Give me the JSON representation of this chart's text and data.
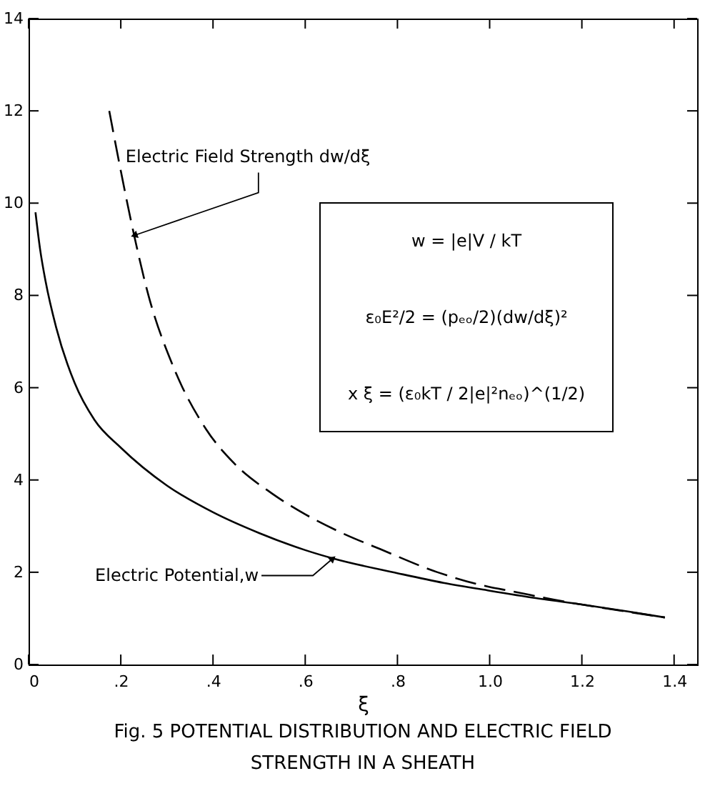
{
  "chart_data": {
    "type": "line",
    "title": "Fig. 5 POTENTIAL DISTRIBUTION AND ELECTRIC FIELD STRENGTH IN A SHEATH",
    "xlabel": "ξ",
    "xlim": [
      0,
      1.45
    ],
    "ylim": [
      0,
      14
    ],
    "xticks": [
      0,
      {
        "value": 0.2,
        "label": ".2"
      },
      {
        "value": 0.4,
        "label": ".4"
      },
      {
        "value": 0.6,
        "label": ".6"
      },
      {
        "value": 0.8,
        "label": ".8"
      },
      {
        "value": 1,
        "label": "1.0"
      },
      {
        "value": 1.2,
        "label": "1.2"
      },
      {
        "value": 1.4,
        "label": "1.4"
      }
    ],
    "yticks": [
      0,
      2,
      4,
      6,
      8,
      10,
      12,
      14
    ],
    "grid": false,
    "annotations": [
      "w = |e|V / kT",
      "ε₀E²/2 = (pₑₒ/2)(dw/dξ)²",
      "x ξ = (ε₀kT / 2|e|²nₑₒ)^(1/2)"
    ],
    "series": [
      {
        "name": "Electric Potential,w",
        "color": "#000000",
        "line_style": "solid",
        "x": [
          0.015,
          0.025,
          0.037,
          0.06,
          0.1,
          0.143,
          0.2,
          0.3,
          0.4,
          0.5,
          0.6,
          0.66,
          0.8,
          0.9,
          1.0,
          1.1,
          1.2,
          1.3,
          1.38
        ],
        "values": [
          9.8,
          9.0,
          8.3,
          7.3,
          6.1,
          5.3,
          4.7,
          3.88,
          3.3,
          2.85,
          2.48,
          2.3,
          1.98,
          1.77,
          1.6,
          1.44,
          1.3,
          1.15,
          1.02
        ]
      },
      {
        "name": "Electric Field Strength dw/dξ",
        "color": "#000000",
        "line_style": "dashed",
        "x": [
          0.175,
          0.2,
          0.229,
          0.26,
          0.312,
          0.385,
          0.447,
          0.529,
          0.601,
          0.68,
          0.763,
          0.887,
          1.0,
          1.042,
          1.153,
          1.25,
          1.38
        ],
        "values": [
          12.0,
          10.7,
          9.3,
          8.0,
          6.5,
          5.1,
          4.35,
          3.7,
          3.25,
          2.85,
          2.5,
          2.0,
          1.68,
          1.6,
          1.38,
          1.22,
          1.02
        ]
      }
    ]
  }
}
